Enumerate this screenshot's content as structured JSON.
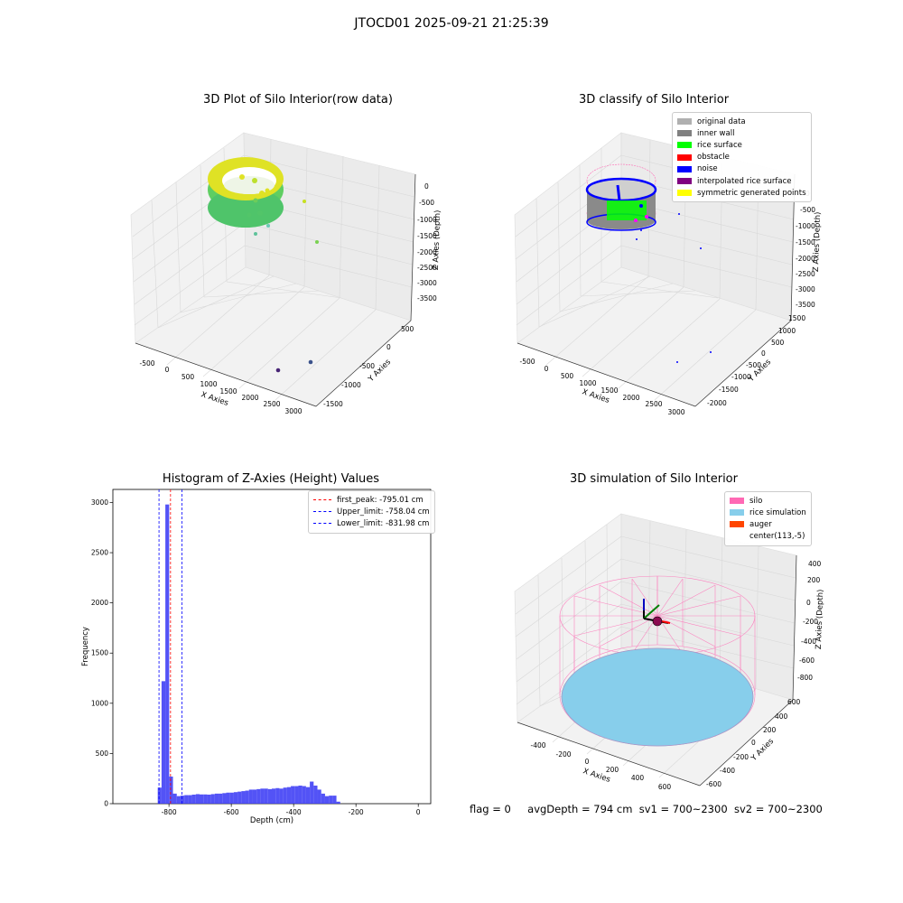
{
  "suptitle": "JTOCD01 2025-09-21 21:25:39",
  "footer": {
    "flag": "flag = 0",
    "avg": "avgDepth = 794 cm",
    "sv1": "sv1 = 700~2300",
    "sv2": "sv2 = 700~2300"
  },
  "panels": {
    "raw": {
      "title": "3D Plot of Silo Interior(row data)",
      "xlabel": "X Axies",
      "ylabel": "Y Axies",
      "zlabel": "Z Axies (Depth)",
      "xticks": [
        "-500",
        "0",
        "500",
        "1000",
        "1500",
        "2000",
        "2500",
        "3000"
      ],
      "yticks": [
        "500",
        "0",
        "-500",
        "-1000",
        "-1500"
      ],
      "zticks": [
        "0",
        "-500",
        "-1000",
        "-1500",
        "-2000",
        "-2500",
        "-3000",
        "-3500"
      ]
    },
    "classify": {
      "title": "3D classify of Silo Interior",
      "xlabel": "X Axies",
      "ylabel": "Y Axies",
      "zlabel": "Z Axies (Depth)",
      "xticks": [
        "-500",
        "0",
        "500",
        "1000",
        "1500",
        "2000",
        "2500",
        "3000"
      ],
      "yticks": [
        "1500",
        "1000",
        "500",
        "0",
        "-500",
        "-1000",
        "-1500",
        "-2000"
      ],
      "zticks": [
        "0",
        "-500",
        "-1000",
        "-1500",
        "-2000",
        "-2500",
        "-3000",
        "-3500"
      ],
      "legend": [
        {
          "label": "original data",
          "color": "#b0b0b0"
        },
        {
          "label": "inner wall",
          "color": "#808080"
        },
        {
          "label": "rice surface",
          "color": "#00ff00"
        },
        {
          "label": "obstacle",
          "color": "#ff0000"
        },
        {
          "label": "noise",
          "color": "#0000ff"
        },
        {
          "label": "interpolated rice surface",
          "color": "#800080"
        },
        {
          "label": "symmetric generated points",
          "color": "#ffff00"
        }
      ]
    },
    "simulation": {
      "title": "3D simulation of Silo Interior",
      "xlabel": "X Axies",
      "ylabel": "Y Axies",
      "zlabel": "Z Axies (Depth)",
      "xticks": [
        "-400",
        "-200",
        "0",
        "200",
        "400",
        "600"
      ],
      "yticks": [
        "600",
        "400",
        "200",
        "0",
        "-200",
        "-400",
        "-600"
      ],
      "zticks": [
        "400",
        "200",
        "0",
        "-200",
        "-400",
        "-600",
        "-800"
      ],
      "legend": [
        {
          "label": "silo",
          "color": "#ff69b4"
        },
        {
          "label": "rice simulation",
          "color": "#87ceeb"
        },
        {
          "label": "auger",
          "color": "#ff4500"
        },
        {
          "label": "center(113,-5)",
          "color": ""
        }
      ]
    }
  },
  "chart_data": [
    {
      "type": "scatter",
      "title": "3D Plot of Silo Interior(row data)",
      "xlabel": "X Axies",
      "ylabel": "Y Axies",
      "zlabel": "Z Axies (Depth)",
      "xlim": [
        -600,
        3100
      ],
      "ylim": [
        -1700,
        800
      ],
      "zlim": [
        -3700,
        100
      ]
    },
    {
      "type": "scatter",
      "title": "3D classify of Silo Interior",
      "xlabel": "X Axies",
      "ylabel": "Y Axies",
      "zlabel": "Z Axies (Depth)",
      "xlim": [
        -600,
        3100
      ],
      "ylim": [
        -2100,
        1600
      ],
      "zlim": [
        -3700,
        100
      ]
    },
    {
      "type": "bar",
      "title": "Histogram of Z-Axies (Height) Values",
      "xlabel": "Depth (cm)",
      "ylabel": "Frequency",
      "xlim": [
        -980,
        40
      ],
      "ylim": [
        0,
        3130
      ],
      "xticks": [
        -800,
        -600,
        -400,
        -200,
        0
      ],
      "yticks": [
        0,
        500,
        1000,
        1500,
        2000,
        2500,
        3000
      ],
      "bin_start": -836,
      "bin_width": 12.2,
      "values": [
        160,
        1220,
        2980,
        270,
        100,
        75,
        80,
        85,
        85,
        90,
        95,
        92,
        92,
        90,
        95,
        100,
        100,
        105,
        110,
        110,
        115,
        120,
        125,
        130,
        140,
        140,
        145,
        150,
        150,
        145,
        150,
        155,
        150,
        160,
        165,
        175,
        175,
        180,
        175,
        165,
        220,
        180,
        140,
        100,
        75,
        80,
        80,
        20
      ],
      "lines": [
        {
          "label": "first_peak: -795.01 cm",
          "x": -795.01,
          "color": "#ff0000"
        },
        {
          "label": "Upper_limit: -758.04 cm",
          "x": -758.04,
          "color": "#0000ff"
        },
        {
          "label": "Lower_limit: -831.98 cm",
          "x": -831.98,
          "color": "#0000ff"
        }
      ]
    },
    {
      "type": "scatter",
      "title": "3D simulation of Silo Interior",
      "xlabel": "X Axies",
      "ylabel": "Y Axies",
      "zlabel": "Z Axies (Depth)",
      "xlim": [
        -500,
        750
      ],
      "ylim": [
        -700,
        700
      ],
      "zlim": [
        -900,
        450
      ]
    }
  ]
}
